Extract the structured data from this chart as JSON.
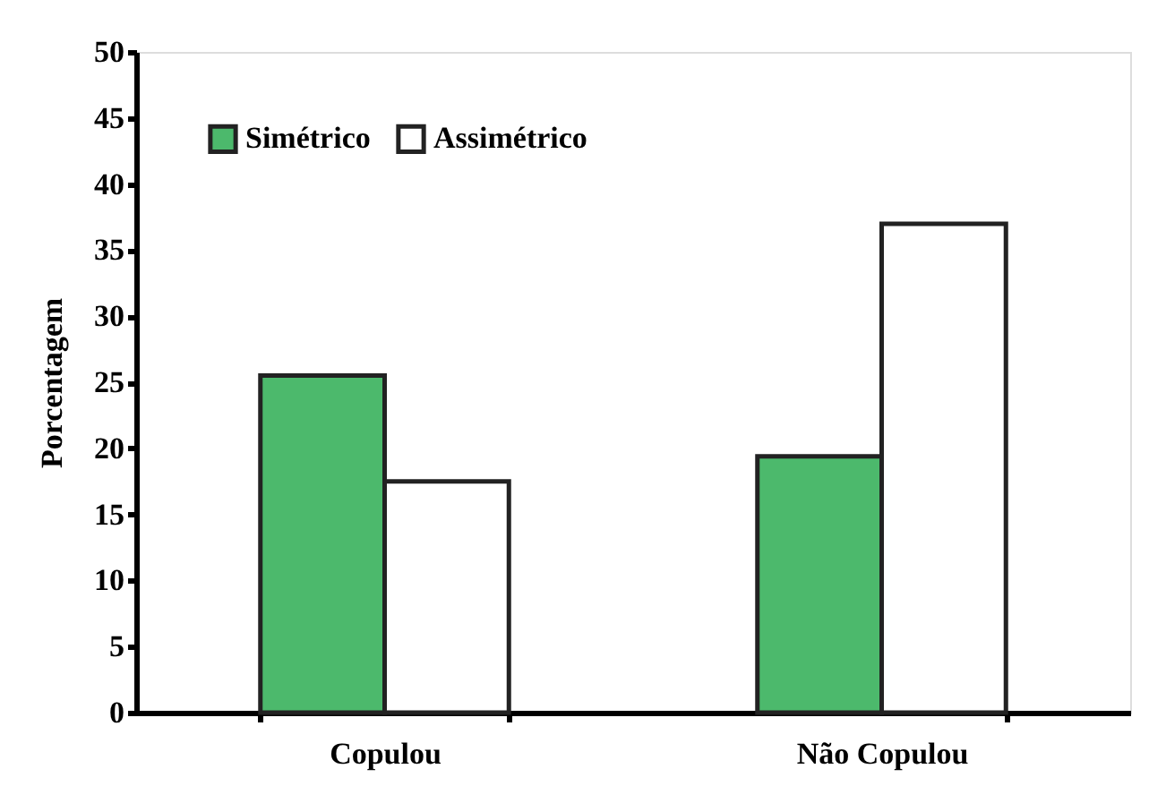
{
  "chart_data": {
    "type": "bar",
    "ylabel": "Porcentagem",
    "categories": [
      "Copulou",
      "Não Copulou"
    ],
    "series": [
      {
        "name": "Simétrico",
        "color": "#4cb96c",
        "values": [
          25.5,
          19.4
        ]
      },
      {
        "name": "Assimétrico",
        "color": "#ffffff",
        "values": [
          17.5,
          37.0
        ]
      }
    ],
    "ylim": [
      0,
      50
    ],
    "yticks": [
      0,
      5,
      10,
      15,
      20,
      25,
      30,
      35,
      40,
      45,
      50
    ],
    "grid": false,
    "legend": "top left"
  }
}
